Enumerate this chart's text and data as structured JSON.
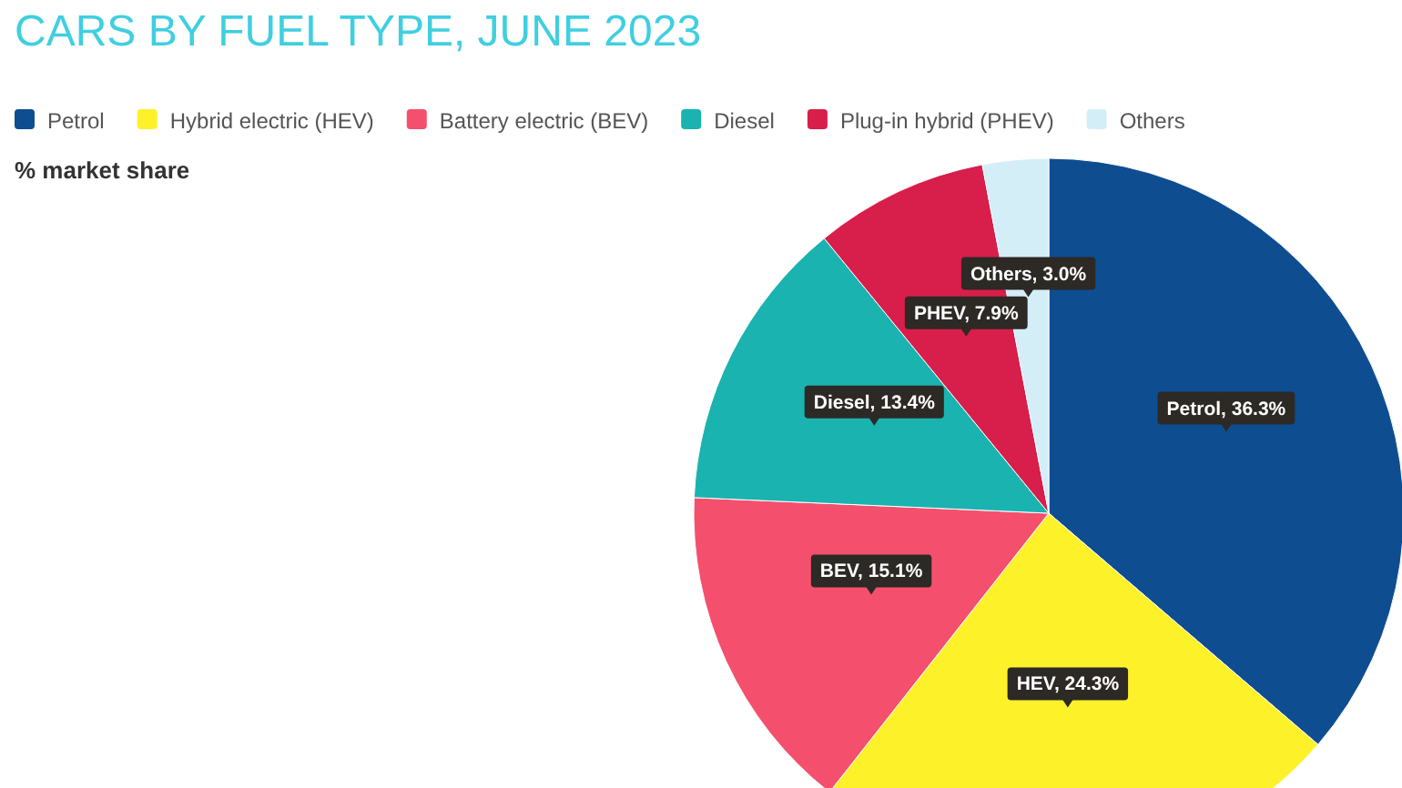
{
  "chart_data": {
    "type": "pie",
    "title": "CARS BY FUEL TYPE, JUNE 2023",
    "subtitle": "% market share",
    "categories": [
      "Petrol",
      "Hybrid electric (HEV)",
      "Battery electric (BEV)",
      "Diesel",
      "Plug-in hybrid (PHEV)",
      "Others"
    ],
    "values": [
      36.3,
      24.3,
      15.1,
      13.4,
      7.9,
      3.0
    ],
    "colors": [
      "#0f4d91",
      "#fdf22a",
      "#f4506e",
      "#1ab3b0",
      "#d81e4a",
      "#d4eef8"
    ],
    "value_labels": [
      "Petrol, 36.3%",
      "HEV, 24.3%",
      "BEV, 15.1%",
      "Diesel, 13.4%",
      "PHEV, 7.9%",
      "Others, 3.0%"
    ],
    "legend": "top left"
  }
}
